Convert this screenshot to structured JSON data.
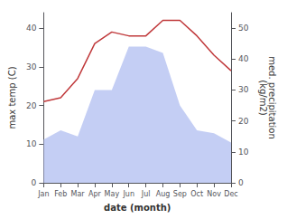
{
  "chart_data": {
    "type": "line",
    "categories": [
      "Jan",
      "Feb",
      "Mar",
      "Apr",
      "May",
      "Jun",
      "Jul",
      "Aug",
      "Sep",
      "Oct",
      "Nov",
      "Dec"
    ],
    "series": [
      {
        "type": "line",
        "color": "#c0393b",
        "values": [
          21,
          22,
          27,
          36,
          39,
          38,
          38,
          42,
          42,
          38,
          33,
          29
        ]
      },
      {
        "type": "area",
        "color": "#b0bdf0",
        "axis": "y2",
        "values": [
          14,
          17,
          15,
          30,
          30,
          44,
          44,
          42,
          25,
          17,
          16,
          13
        ]
      }
    ],
    "xlabel": "date (month)",
    "ylabel": "max temp (C)",
    "y2label": "med. precipitation\n(kg/m2)",
    "ylim": [
      0,
      44
    ],
    "yticks": [
      0,
      10,
      20,
      30,
      40
    ],
    "y2lim": [
      0,
      55
    ],
    "y2ticks": [
      0,
      10,
      20,
      30,
      40,
      50
    ],
    "grid": false
  }
}
